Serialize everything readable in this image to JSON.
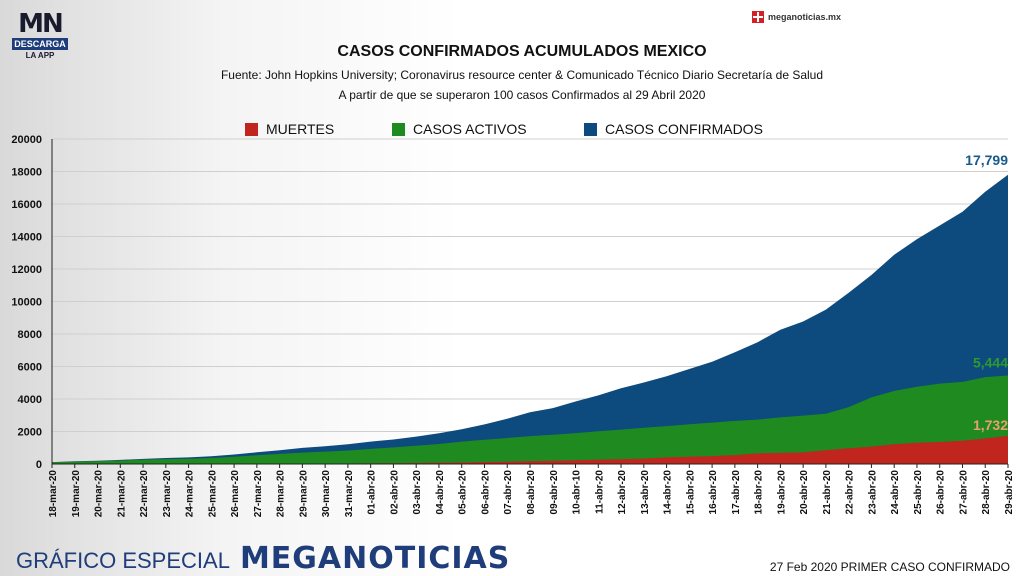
{
  "branding": {
    "logo_mn": "MN",
    "logo_descarga": "DESCARGA",
    "logo_app": "LA APP",
    "site": "meganoticias.mx",
    "footer_especial": "GRÁFICO ESPECIAL",
    "footer_brand": "MEGANOTICIAS",
    "footer_note": "27 Feb 2020 PRIMER CASO CONFIRMADO"
  },
  "colors": {
    "muertes": "#c0251e",
    "activos": "#1f8a1f",
    "confirmados": "#0d4a7d",
    "label_muertes": "#e8a070",
    "label_activos": "#2e9a2e",
    "label_confirmados": "#1a5a8a"
  },
  "chart_data": {
    "type": "area",
    "title": "CASOS CONFIRMADOS ACUMULADOS MEXICO",
    "subtitle1": "Fuente: John Hopkins University; Coronavirus resource center & Comunicado Técnico Diario Secretaría de Salud",
    "subtitle2": "A partir de que se superaron 100 casos Confirmados al 29 Abril 2020",
    "ylim": [
      0,
      20000
    ],
    "yticks": [
      0,
      2000,
      4000,
      6000,
      8000,
      10000,
      12000,
      14000,
      16000,
      18000,
      20000
    ],
    "legend": [
      "MUERTES",
      "CASOS ACTIVOS",
      "CASOS CONFIRMADOS"
    ],
    "x": [
      "18-mar-20",
      "19-mar-20",
      "20-mar-20",
      "21-mar-20",
      "22-mar-20",
      "23-mar-20",
      "24-mar-20",
      "25-mar-20",
      "26-mar-20",
      "27-mar-20",
      "28-mar-20",
      "29-mar-20",
      "30-mar-20",
      "31-mar-20",
      "01-abr-20",
      "02-abr-20",
      "03-abr-20",
      "04-abr-20",
      "05-abr-20",
      "06-abr-20",
      "07-abr-20",
      "08-abr-20",
      "09-abr-20",
      "10-abr-10",
      "11-abr-20",
      "12-abr-20",
      "13-abr-20",
      "14-abr-20",
      "15-abr-20",
      "16-abr-20",
      "17-abr-20",
      "18-abr-20",
      "19-abr-20",
      "20-abr-20",
      "21-abr-20",
      "22-abr-20",
      "23-abr-20",
      "24-abr-20",
      "25-abr-20",
      "26-abr-20",
      "27-abr-20",
      "28-abr-20",
      "29-abr-20"
    ],
    "series": [
      {
        "name": "CASOS CONFIRMADOS",
        "values": [
          118,
          164,
          203,
          251,
          316,
          367,
          405,
          475,
          585,
          717,
          848,
          993,
          1094,
          1215,
          1378,
          1510,
          1688,
          1890,
          2143,
          2439,
          2785,
          3181,
          3441,
          3844,
          4219,
          4661,
          5014,
          5399,
          5847,
          6297,
          6875,
          7497,
          8261,
          8772,
          9501,
          10544,
          11633,
          12872,
          13842,
          14677,
          15529,
          16752,
          17799
        ]
      },
      {
        "name": "CASOS ACTIVOS",
        "values": [
          110,
          150,
          180,
          215,
          270,
          300,
          320,
          370,
          450,
          540,
          620,
          700,
          760,
          830,
          930,
          1020,
          1120,
          1230,
          1380,
          1490,
          1600,
          1720,
          1800,
          1900,
          2020,
          2120,
          2230,
          2330,
          2450,
          2550,
          2650,
          2730,
          2870,
          2980,
          3090,
          3500,
          4100,
          4500,
          4750,
          4950,
          5050,
          5350,
          5444
        ]
      },
      {
        "name": "MUERTES",
        "values": [
          0,
          1,
          2,
          2,
          2,
          4,
          5,
          6,
          8,
          12,
          16,
          20,
          28,
          29,
          37,
          50,
          60,
          79,
          94,
          125,
          141,
          174,
          194,
          233,
          273,
          296,
          332,
          406,
          449,
          486,
          546,
          650,
          686,
          712,
          857,
          970,
          1069,
          1221,
          1305,
          1351,
          1434,
          1569,
          1732
        ]
      }
    ],
    "end_labels": {
      "confirmados": "17,799",
      "activos": "5,444",
      "muertes": "1,732"
    }
  }
}
